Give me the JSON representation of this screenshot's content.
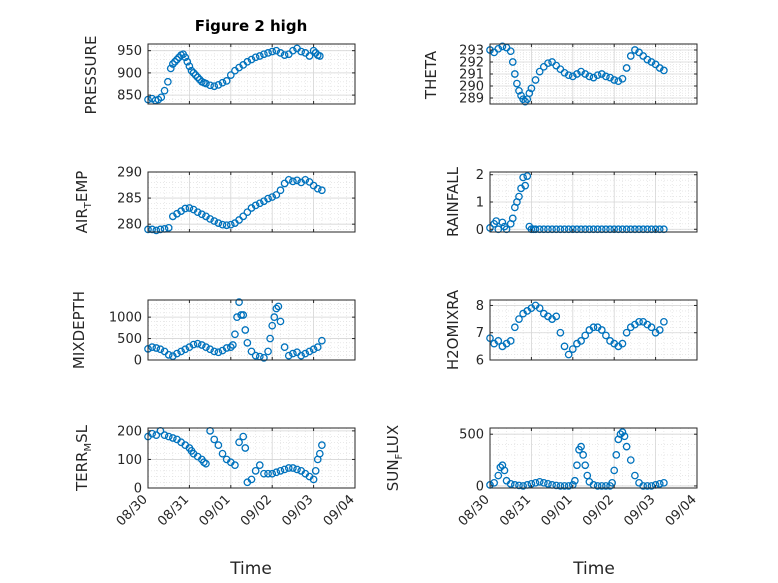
{
  "title": "Figure 2 high",
  "accent_color": "#0072BD",
  "x_tick_labels": [
    "08/30",
    "08/31",
    "09/01",
    "09/02",
    "09/03",
    "09/04"
  ],
  "xlabel": "Time",
  "ylabels": {
    "pressure": "PRESSURE",
    "theta": "THETA",
    "air_temp_main": "AIR",
    "air_temp_sub": "T",
    "air_temp_tail": "EMP",
    "rainfall": "RAINFALL",
    "mixdepth": "MIXDEPTH",
    "h2omixra": "H2OMIXRA",
    "terr_main": "TERR",
    "terr_sub": "M",
    "terr_tail": "SL",
    "sun_main": "SUN",
    "sun_sub": "F",
    "sun_tail": "LUX"
  },
  "chart_data": [
    {
      "id": "pressure",
      "type": "scatter",
      "ylabel": "PRESSURE",
      "ylim": [
        830,
        965
      ],
      "yticks": [
        850,
        900,
        950
      ],
      "grid": true,
      "minor_grid": true,
      "x": [
        0.0,
        0.1,
        0.18,
        0.25,
        0.32,
        0.4,
        0.48,
        0.55,
        0.6,
        0.65,
        0.7,
        0.75,
        0.8,
        0.85,
        0.9,
        0.95,
        1.0,
        1.05,
        1.1,
        1.15,
        1.2,
        1.25,
        1.3,
        1.35,
        1.4,
        1.5,
        1.6,
        1.7,
        1.8,
        1.9,
        2.0,
        2.1,
        2.2,
        2.3,
        2.4,
        2.5,
        2.6,
        2.7,
        2.8,
        2.9,
        3.0,
        3.1,
        3.2,
        3.3,
        3.4,
        3.5,
        3.6,
        3.7,
        3.8,
        3.9,
        4.0,
        4.05,
        4.1,
        4.15
      ],
      "y": [
        840,
        842,
        838,
        840,
        845,
        860,
        880,
        910,
        920,
        925,
        930,
        935,
        940,
        942,
        935,
        925,
        915,
        905,
        900,
        895,
        890,
        885,
        880,
        878,
        876,
        872,
        870,
        873,
        878,
        882,
        895,
        905,
        912,
        918,
        925,
        930,
        935,
        938,
        942,
        945,
        948,
        950,
        945,
        940,
        942,
        950,
        955,
        948,
        945,
        938,
        950,
        945,
        940,
        938
      ]
    },
    {
      "id": "theta",
      "type": "scatter",
      "ylabel": "THETA",
      "ylim": [
        288.5,
        293.5
      ],
      "yticks": [
        289,
        290,
        291,
        292,
        293
      ],
      "grid": true,
      "minor_grid": true,
      "x": [
        0.0,
        0.1,
        0.2,
        0.3,
        0.4,
        0.5,
        0.55,
        0.6,
        0.65,
        0.7,
        0.75,
        0.8,
        0.85,
        0.9,
        0.95,
        1.0,
        1.1,
        1.2,
        1.3,
        1.4,
        1.5,
        1.6,
        1.7,
        1.8,
        1.9,
        2.0,
        2.1,
        2.2,
        2.3,
        2.4,
        2.5,
        2.6,
        2.7,
        2.8,
        2.9,
        3.0,
        3.1,
        3.2,
        3.3,
        3.4,
        3.5,
        3.6,
        3.7,
        3.8,
        3.9,
        4.0,
        4.1,
        4.2
      ],
      "y": [
        293,
        292.8,
        293.1,
        293.3,
        293.2,
        292.9,
        292,
        291,
        290.2,
        289.6,
        289.2,
        288.9,
        288.7,
        288.9,
        289.4,
        289.8,
        290.5,
        291.2,
        291.6,
        291.9,
        292.0,
        291.7,
        291.4,
        291.1,
        290.9,
        290.8,
        291.0,
        291.2,
        291.0,
        290.8,
        290.7,
        290.9,
        291.0,
        290.8,
        290.7,
        290.5,
        290.4,
        290.6,
        291.5,
        292.5,
        293.0,
        292.8,
        292.5,
        292.2,
        292.0,
        291.8,
        291.5,
        291.3
      ]
    },
    {
      "id": "air_temp",
      "type": "scatter",
      "ylabel": "AIR_TEMP",
      "ylim": [
        278.5,
        290
      ],
      "yticks": [
        280,
        285,
        290
      ],
      "grid": true,
      "minor_grid": true,
      "x": [
        0.0,
        0.1,
        0.2,
        0.3,
        0.4,
        0.5,
        0.6,
        0.7,
        0.8,
        0.9,
        1.0,
        1.1,
        1.2,
        1.3,
        1.4,
        1.5,
        1.6,
        1.7,
        1.8,
        1.9,
        2.0,
        2.1,
        2.2,
        2.3,
        2.4,
        2.5,
        2.6,
        2.7,
        2.8,
        2.9,
        3.0,
        3.1,
        3.2,
        3.3,
        3.4,
        3.5,
        3.6,
        3.7,
        3.8,
        3.9,
        4.0,
        4.1,
        4.2
      ],
      "y": [
        279,
        279,
        278.8,
        279,
        279.1,
        279.3,
        281.5,
        282,
        282.5,
        283,
        283.1,
        282.8,
        282.3,
        281.9,
        281.5,
        281.0,
        280.6,
        280.2,
        279.9,
        279.8,
        279.9,
        280.2,
        280.8,
        281.5,
        282.3,
        283.1,
        283.6,
        284.0,
        284.4,
        284.9,
        285.2,
        285.6,
        286.5,
        287.8,
        288.5,
        288.2,
        288.4,
        288.0,
        288.5,
        288.1,
        287.4,
        286.8,
        286.5
      ]
    },
    {
      "id": "rainfall",
      "type": "scatter",
      "ylabel": "RAINFALL",
      "ylim": [
        -0.1,
        2.1
      ],
      "yticks": [
        0,
        1,
        2
      ],
      "grid": true,
      "minor_grid": true,
      "x": [
        0.0,
        0.1,
        0.15,
        0.2,
        0.3,
        0.35,
        0.4,
        0.5,
        0.55,
        0.6,
        0.65,
        0.7,
        0.75,
        0.8,
        0.85,
        0.9,
        0.95,
        1.0,
        1.05,
        1.1,
        1.2,
        1.3,
        1.4,
        1.5,
        1.6,
        1.7,
        1.8,
        1.9,
        2.0,
        2.1,
        2.2,
        2.3,
        2.4,
        2.5,
        2.6,
        2.7,
        2.8,
        2.9,
        3.0,
        3.1,
        3.2,
        3.3,
        3.4,
        3.5,
        3.6,
        3.7,
        3.8,
        3.9,
        4.0,
        4.1,
        4.2
      ],
      "y": [
        0.05,
        0.2,
        0.3,
        0.0,
        0.25,
        0.1,
        0.0,
        0.2,
        0.4,
        0.8,
        1.0,
        1.2,
        1.5,
        1.9,
        1.6,
        1.95,
        0.1,
        0.0,
        0.0,
        0.0,
        0.0,
        0.0,
        0.0,
        0.0,
        0.0,
        0.0,
        0.0,
        0.0,
        0.0,
        0.0,
        0.0,
        0.0,
        0.0,
        0.0,
        0.0,
        0.0,
        0.0,
        0.0,
        0.0,
        0.0,
        0.0,
        0.0,
        0.0,
        0.0,
        0.0,
        0.0,
        0.0,
        0.0,
        0.0,
        0.0,
        0.0
      ]
    },
    {
      "id": "mixdepth",
      "type": "scatter",
      "ylabel": "MIXDEPTH",
      "ylim": [
        0,
        1400
      ],
      "yticks": [
        0,
        500,
        1000
      ],
      "grid": true,
      "minor_grid": true,
      "x": [
        0.0,
        0.1,
        0.2,
        0.3,
        0.4,
        0.5,
        0.6,
        0.7,
        0.8,
        0.9,
        1.0,
        1.1,
        1.2,
        1.3,
        1.4,
        1.5,
        1.6,
        1.7,
        1.8,
        1.9,
        2.0,
        2.05,
        2.1,
        2.15,
        2.2,
        2.25,
        2.3,
        2.35,
        2.4,
        2.5,
        2.6,
        2.7,
        2.8,
        2.9,
        2.95,
        3.0,
        3.05,
        3.1,
        3.15,
        3.2,
        3.3,
        3.4,
        3.5,
        3.6,
        3.7,
        3.8,
        3.9,
        4.0,
        4.1,
        4.2
      ],
      "y": [
        260,
        300,
        280,
        250,
        200,
        120,
        90,
        150,
        200,
        250,
        300,
        360,
        380,
        350,
        300,
        250,
        200,
        180,
        220,
        280,
        300,
        350,
        600,
        1000,
        1350,
        1050,
        1050,
        700,
        400,
        200,
        100,
        80,
        50,
        200,
        500,
        800,
        1000,
        1200,
        1250,
        900,
        300,
        100,
        150,
        180,
        100,
        150,
        200,
        250,
        300,
        450
      ]
    },
    {
      "id": "h2omixra",
      "type": "scatter",
      "ylabel": "H2OMIXRA",
      "ylim": [
        6,
        8.2
      ],
      "yticks": [
        6,
        7,
        8
      ],
      "grid": true,
      "minor_grid": true,
      "x": [
        0.0,
        0.1,
        0.2,
        0.3,
        0.4,
        0.5,
        0.6,
        0.7,
        0.8,
        0.9,
        1.0,
        1.1,
        1.2,
        1.3,
        1.4,
        1.5,
        1.6,
        1.7,
        1.8,
        1.9,
        2.0,
        2.1,
        2.2,
        2.3,
        2.4,
        2.5,
        2.6,
        2.7,
        2.8,
        2.9,
        3.0,
        3.1,
        3.2,
        3.3,
        3.4,
        3.5,
        3.6,
        3.7,
        3.8,
        3.9,
        4.0,
        4.1,
        4.2
      ],
      "y": [
        6.8,
        6.6,
        6.7,
        6.5,
        6.6,
        6.7,
        7.2,
        7.5,
        7.7,
        7.8,
        7.9,
        8.0,
        7.9,
        7.7,
        7.6,
        7.5,
        7.6,
        7.0,
        6.5,
        6.2,
        6.4,
        6.6,
        6.7,
        6.9,
        7.1,
        7.2,
        7.2,
        7.1,
        6.9,
        6.7,
        6.6,
        6.5,
        6.6,
        7.0,
        7.2,
        7.3,
        7.4,
        7.4,
        7.3,
        7.2,
        7.0,
        7.1,
        7.4
      ]
    },
    {
      "id": "terr_msl",
      "type": "scatter",
      "ylabel": "TERR_MSL",
      "ylim": [
        0,
        210
      ],
      "yticks": [
        0,
        100,
        200
      ],
      "grid": true,
      "minor_grid": true,
      "x": [
        0.0,
        0.1,
        0.2,
        0.3,
        0.4,
        0.5,
        0.6,
        0.7,
        0.8,
        0.9,
        1.0,
        1.05,
        1.1,
        1.2,
        1.3,
        1.35,
        1.4,
        1.5,
        1.6,
        1.7,
        1.8,
        1.9,
        2.0,
        2.1,
        2.2,
        2.3,
        2.35,
        2.4,
        2.5,
        2.6,
        2.7,
        2.8,
        2.9,
        3.0,
        3.1,
        3.2,
        3.3,
        3.4,
        3.5,
        3.6,
        3.7,
        3.8,
        3.9,
        4.0,
        4.05,
        4.1,
        4.15,
        4.2
      ],
      "y": [
        180,
        190,
        185,
        200,
        185,
        180,
        175,
        170,
        160,
        150,
        140,
        130,
        120,
        110,
        100,
        90,
        85,
        200,
        170,
        150,
        120,
        100,
        90,
        80,
        160,
        180,
        140,
        20,
        30,
        60,
        80,
        50,
        50,
        50,
        55,
        60,
        65,
        70,
        70,
        65,
        60,
        50,
        40,
        30,
        60,
        100,
        120,
        150
      ]
    },
    {
      "id": "sun_flux",
      "type": "scatter",
      "ylabel": "SUN_FLUX",
      "ylim": [
        -20,
        560
      ],
      "yticks": [
        0,
        500
      ],
      "grid": true,
      "minor_grid": true,
      "x": [
        0.0,
        0.1,
        0.2,
        0.25,
        0.3,
        0.35,
        0.4,
        0.5,
        0.6,
        0.7,
        0.8,
        0.9,
        1.0,
        1.1,
        1.2,
        1.3,
        1.4,
        1.5,
        1.6,
        1.7,
        1.8,
        1.9,
        2.0,
        2.05,
        2.1,
        2.15,
        2.2,
        2.25,
        2.3,
        2.35,
        2.4,
        2.5,
        2.6,
        2.7,
        2.8,
        2.9,
        2.95,
        3.0,
        3.05,
        3.1,
        3.15,
        3.2,
        3.25,
        3.3,
        3.4,
        3.5,
        3.6,
        3.7,
        3.8,
        3.9,
        4.0,
        4.1,
        4.2
      ],
      "y": [
        10,
        30,
        100,
        180,
        200,
        150,
        50,
        20,
        10,
        5,
        0,
        10,
        20,
        30,
        40,
        30,
        20,
        10,
        5,
        0,
        0,
        0,
        10,
        50,
        200,
        350,
        380,
        300,
        200,
        100,
        40,
        10,
        0,
        0,
        0,
        0,
        30,
        150,
        300,
        450,
        500,
        520,
        480,
        380,
        250,
        100,
        30,
        0,
        0,
        0,
        10,
        20,
        30
      ]
    }
  ]
}
